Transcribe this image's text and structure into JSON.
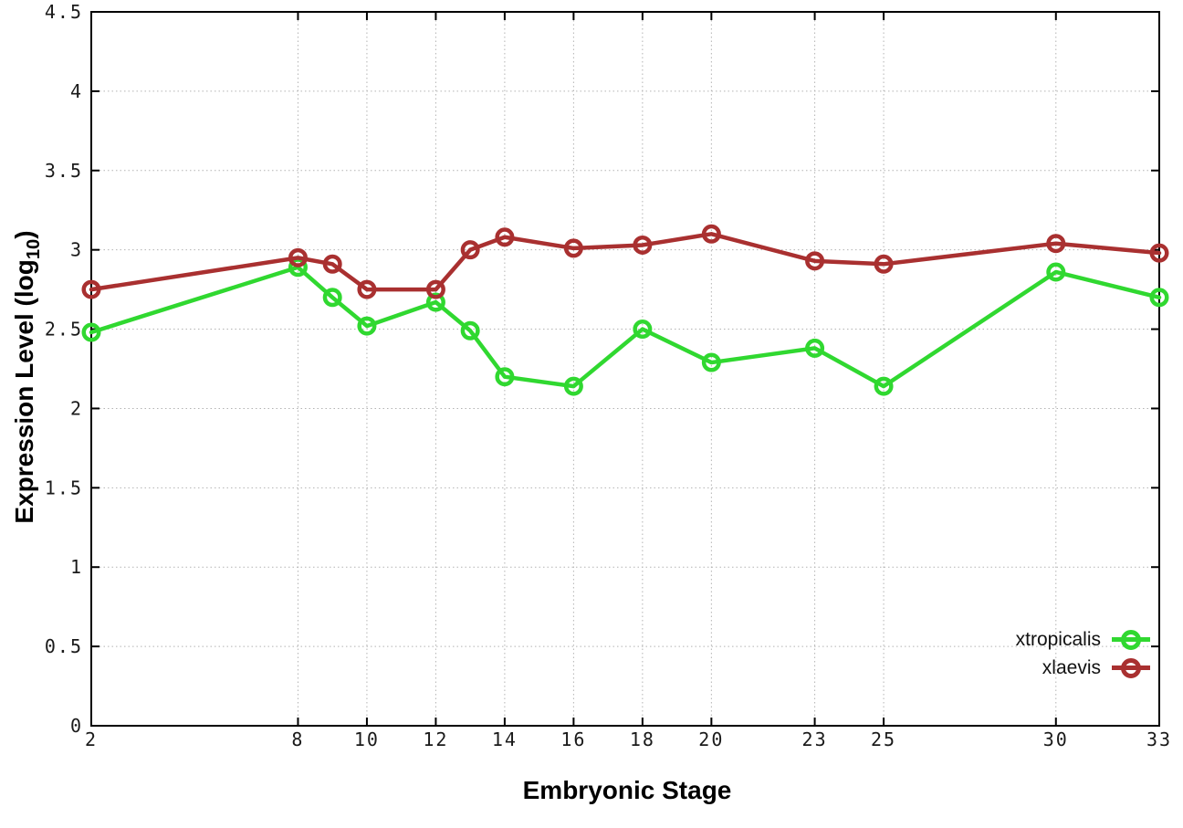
{
  "labels": {
    "y_title_prefix": "Expression Level (log",
    "y_title_sub": "10",
    "y_title_suffix": ")"
  },
  "chart_data": {
    "type": "line",
    "title": "",
    "xlabel": "Embryonic Stage",
    "ylabel": "Expression Level (log10)",
    "xlim": [
      2,
      33
    ],
    "ylim": [
      0,
      4.5
    ],
    "x_ticks": [
      2,
      8,
      10,
      12,
      14,
      16,
      18,
      20,
      23,
      25,
      30,
      33
    ],
    "y_tick_step": 0.5,
    "grid": true,
    "legend_position": "inside-bottom-right",
    "x": [
      2,
      8,
      9,
      10,
      12,
      13,
      14,
      16,
      18,
      20,
      23,
      25,
      30,
      33
    ],
    "series": [
      {
        "name": "xtropicalis",
        "color": "#30d830",
        "marker": "open-circle",
        "values": [
          2.48,
          2.89,
          2.7,
          2.52,
          2.67,
          2.49,
          2.2,
          2.14,
          2.5,
          2.29,
          2.38,
          2.14,
          2.86,
          2.7
        ]
      },
      {
        "name": "xlaevis",
        "color": "#a93030",
        "marker": "open-circle",
        "values": [
          2.75,
          2.95,
          2.91,
          2.75,
          2.75,
          3.0,
          3.08,
          3.01,
          3.03,
          3.1,
          2.93,
          2.91,
          3.04,
          2.98
        ]
      }
    ],
    "style": {
      "grid_color": "#b3b3b3",
      "border_color": "#000000",
      "tick_label_color": "#1a1a1a",
      "background": "#ffffff"
    }
  }
}
